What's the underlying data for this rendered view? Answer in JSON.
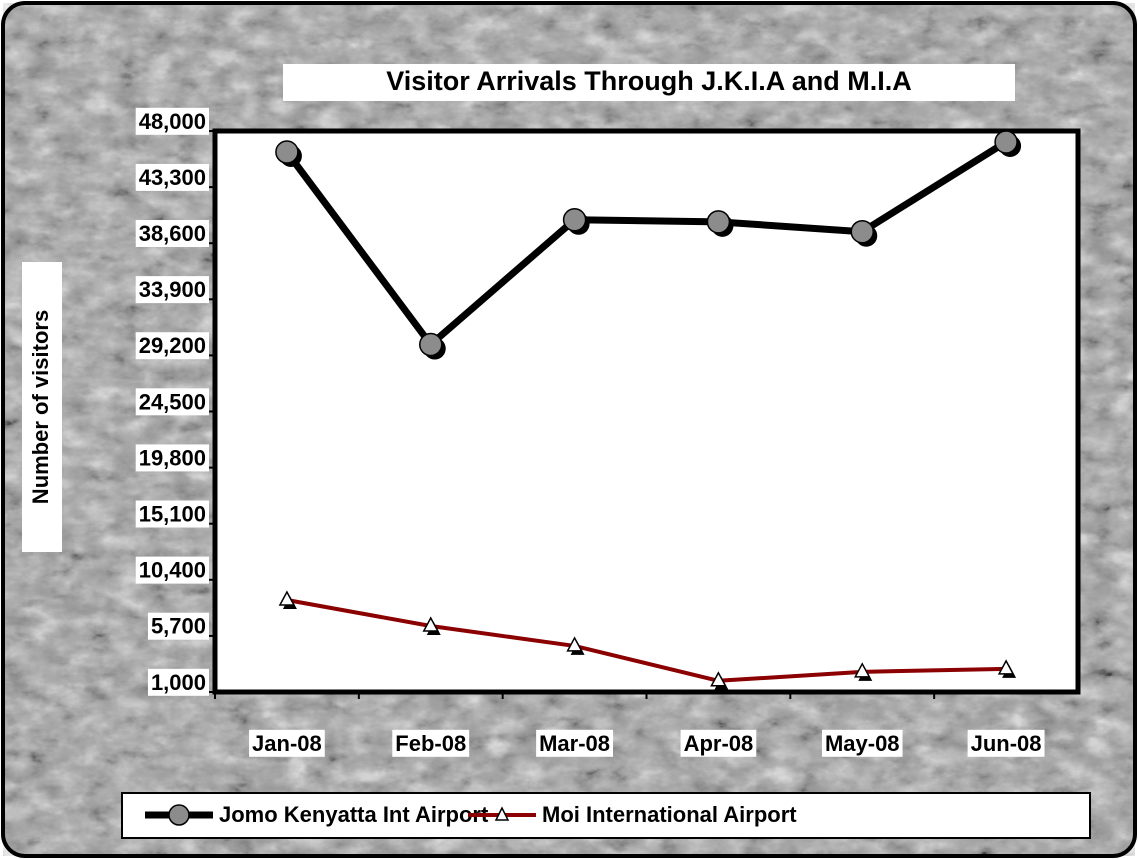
{
  "chart_data": {
    "type": "line",
    "title": "Visitor Arrivals Through J.K.I.A and M.I.A",
    "y_label": "Number of visitors",
    "categories": [
      "Jan-08",
      "Feb-08",
      "Mar-08",
      "Apr-08",
      "May-08",
      "Jun-08"
    ],
    "series": [
      {
        "name": "Jomo Kenyatta Int Airport",
        "color": "#000000",
        "marker": "circle",
        "marker_color": "#8c8c8c",
        "values": [
          46240,
          30110,
          40560,
          40390,
          39560,
          47080
        ]
      },
      {
        "name": "Moi International Airport",
        "color": "#8b0000",
        "marker": "triangle",
        "marker_color": "#ffffff",
        "values": [
          8710,
          6530,
          4860,
          1940,
          2690,
          2940
        ]
      }
    ],
    "ylim": [
      1000,
      48000
    ],
    "yticks": [
      {
        "value": 1000,
        "label": "1,000"
      },
      {
        "value": 5700,
        "label": "5,700"
      },
      {
        "value": 10400,
        "label": "10,400"
      },
      {
        "value": 15100,
        "label": "15,100"
      },
      {
        "value": 19800,
        "label": "19,800"
      },
      {
        "value": 24500,
        "label": "24,500"
      },
      {
        "value": 29200,
        "label": "29,200"
      },
      {
        "value": 33900,
        "label": "33,900"
      },
      {
        "value": 38600,
        "label": "38,600"
      },
      {
        "value": 43300,
        "label": "43,300"
      },
      {
        "value": 48000,
        "label": "48,000"
      }
    ],
    "legend": "bottom"
  }
}
